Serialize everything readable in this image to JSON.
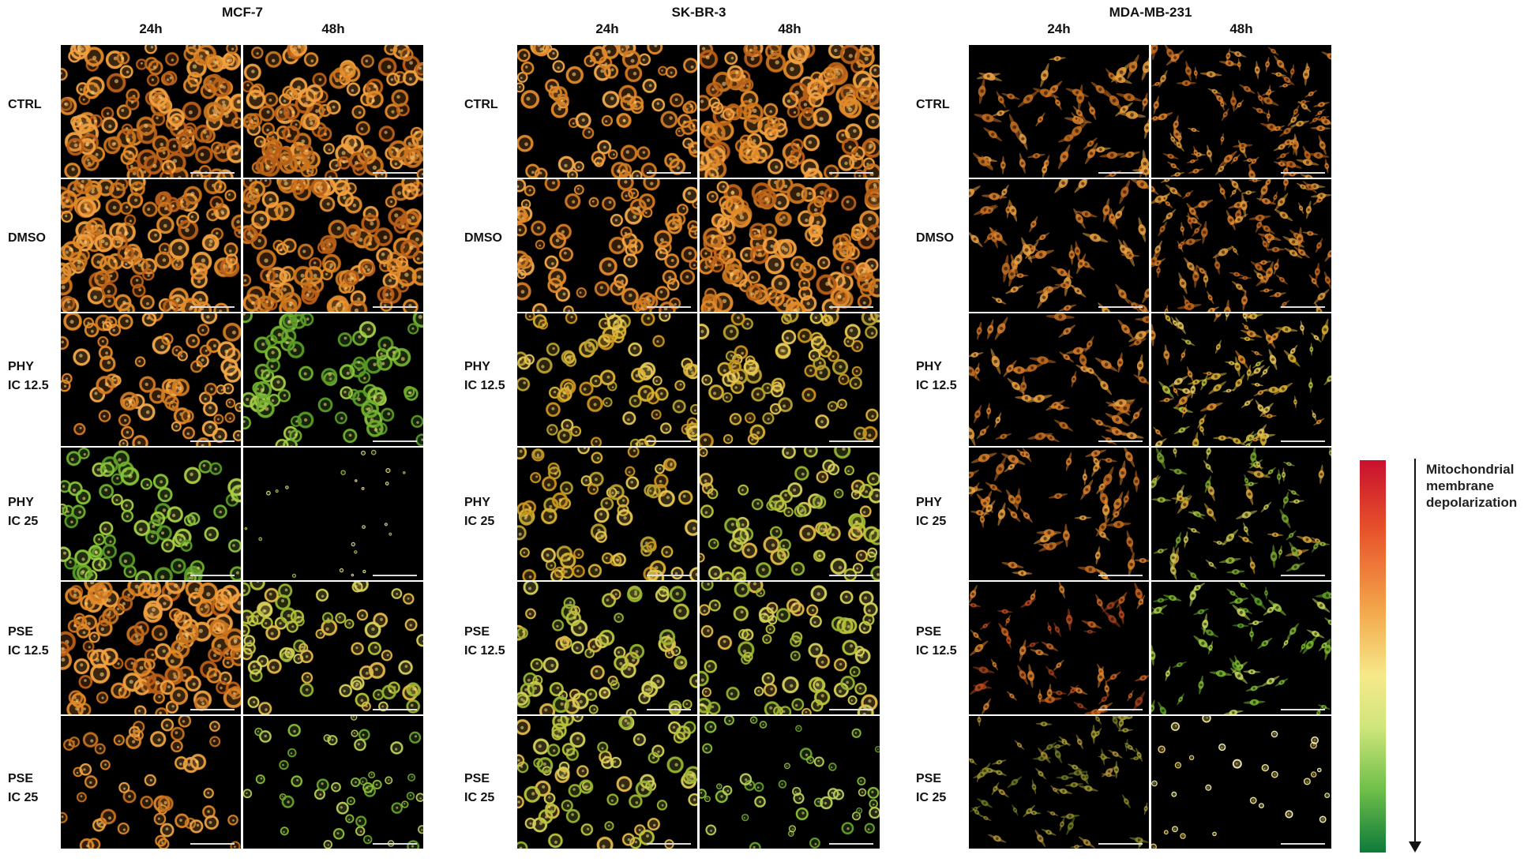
{
  "panels": [
    {
      "cell_line": "MCF-7",
      "times": [
        "24h",
        "48h"
      ],
      "rows": [
        {
          "line1": "CTRL",
          "line2": ""
        },
        {
          "line1": "DMSO",
          "line2": ""
        },
        {
          "line1": "PHY",
          "line2": "IC 12.5"
        },
        {
          "line1": "PHY",
          "line2": "IC 25"
        },
        {
          "line1": "PSE",
          "line2": "IC 12.5"
        },
        {
          "line1": "PSE",
          "line2": "IC 25"
        }
      ],
      "tiles": [
        [
          "orange-dense",
          "orange-dense"
        ],
        [
          "orange-dense",
          "orange-dense"
        ],
        [
          "orange-medium",
          "green-medium"
        ],
        [
          "green-medium",
          "sparse-dim"
        ],
        [
          "orange-dense",
          "yellowgreen-medium"
        ],
        [
          "orange-sparse",
          "green-sparse"
        ]
      ]
    },
    {
      "cell_line": "SK-BR-3",
      "times": [
        "24h",
        "48h"
      ],
      "rows": [
        {
          "line1": "CTRL",
          "line2": ""
        },
        {
          "line1": "DMSO",
          "line2": ""
        },
        {
          "line1": "PHY",
          "line2": "IC 12.5"
        },
        {
          "line1": "PHY",
          "line2": "IC 25"
        },
        {
          "line1": "PSE",
          "line2": "IC 12.5"
        },
        {
          "line1": "PSE",
          "line2": "IC 25"
        }
      ],
      "tiles": [
        [
          "orange-medium",
          "orange-dense"
        ],
        [
          "orange-medium",
          "orange-dense"
        ],
        [
          "yellow-medium",
          "yellow-medium"
        ],
        [
          "yellow-medium",
          "yellowgreen-medium"
        ],
        [
          "yellowgreen-medium",
          "yellowgreen-medium"
        ],
        [
          "yellowgreen-medium",
          "green-sparse"
        ]
      ]
    },
    {
      "cell_line": "MDA-MB-231",
      "times": [
        "24h",
        "48h"
      ],
      "rows": [
        {
          "line1": "CTRL",
          "line2": ""
        },
        {
          "line1": "DMSO",
          "line2": ""
        },
        {
          "line1": "PHY",
          "line2": "IC 12.5"
        },
        {
          "line1": "PHY",
          "line2": "IC 25"
        },
        {
          "line1": "PSE",
          "line2": "IC 12.5"
        },
        {
          "line1": "PSE",
          "line2": "IC 25"
        }
      ],
      "tiles": [
        [
          "orange-spindle",
          "orange-spindle-dense"
        ],
        [
          "orange-spindle",
          "orange-spindle-dense"
        ],
        [
          "orange-spindle",
          "yellow-spindle"
        ],
        [
          "orange-spindle",
          "yellowgreen-spindle"
        ],
        [
          "red-spindle",
          "green-spindle"
        ],
        [
          "olive-spindle",
          "yellow-sparse"
        ]
      ]
    }
  ],
  "legend": {
    "line1": "Mitochondrial",
    "line2": "membrane",
    "line3": "depolarization"
  }
}
